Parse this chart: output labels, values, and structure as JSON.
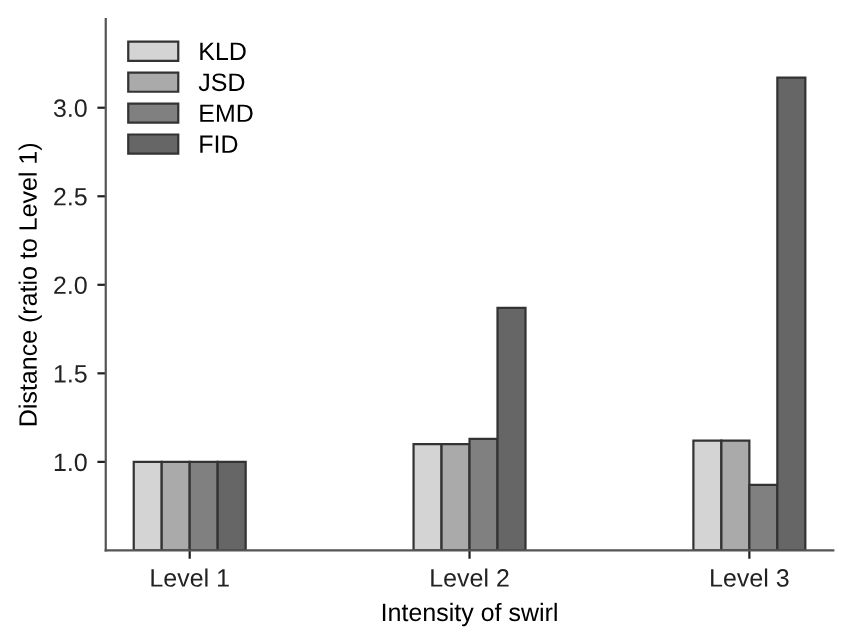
{
  "chart_data": {
    "type": "bar",
    "xlabel": "Intensity of swirl",
    "ylabel": "Distance (ratio to Level 1)",
    "categories": [
      "Level 1",
      "Level 2",
      "Level 3"
    ],
    "series": [
      {
        "name": "KLD",
        "color": "#d4d4d4",
        "values": [
          1.0,
          1.1,
          1.12
        ]
      },
      {
        "name": "JSD",
        "color": "#aaaaaa",
        "values": [
          1.0,
          1.1,
          1.12
        ]
      },
      {
        "name": "EMD",
        "color": "#808080",
        "values": [
          1.0,
          1.13,
          0.87
        ]
      },
      {
        "name": "FID",
        "color": "#666666",
        "values": [
          1.0,
          1.87,
          3.17
        ]
      }
    ],
    "ylim": [
      0.5,
      3.5
    ],
    "yticks": [
      {
        "value": 1.0,
        "label": "1.0"
      },
      {
        "value": 1.5,
        "label": "1.5"
      },
      {
        "value": 2.0,
        "label": "2.0"
      },
      {
        "value": 2.5,
        "label": "2.5"
      },
      {
        "value": 3.0,
        "label": "3.0"
      }
    ],
    "grid": false,
    "legend": "top left"
  }
}
